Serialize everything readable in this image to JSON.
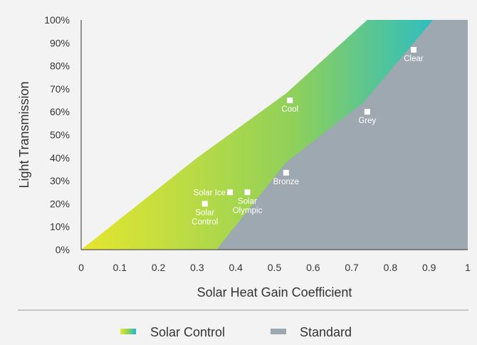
{
  "chart_data": {
    "type": "area",
    "xlabel": "Solar Heat Gain Coefficient",
    "ylabel": "Light Transmission",
    "xlim": [
      0,
      1
    ],
    "ylim": [
      0,
      100
    ],
    "x_ticks": [
      "0",
      "0.1",
      "0.2",
      "0.3",
      "0.4",
      "0.5",
      "0.6",
      "0.7",
      "0.8",
      "0.9",
      "1"
    ],
    "y_ticks": [
      "0%",
      "10%",
      "20%",
      "30%",
      "40%",
      "50%",
      "60%",
      "70%",
      "80%",
      "90%",
      "100%"
    ],
    "grid": false,
    "legend_position": "bottom-center",
    "series": [
      {
        "name": "Solar Control",
        "colors": {
          "start": "#e6e62e",
          "mid": "#8fd05a",
          "end": "#18b9d8"
        },
        "boundary_lower": [
          [
            0,
            0
          ],
          [
            1,
            0
          ]
        ],
        "boundary_upper": [
          [
            0,
            0
          ],
          [
            0.3,
            40
          ],
          [
            0.53,
            68
          ],
          [
            0.74,
            100
          ]
        ]
      },
      {
        "name": "Standard",
        "color": "#9ea8b0",
        "boundary_upper": [
          [
            0.35,
            0
          ],
          [
            0.53,
            38
          ],
          [
            0.73,
            64
          ],
          [
            0.91,
            100
          ]
        ]
      }
    ],
    "points": [
      {
        "label": "Clear",
        "x": 0.86,
        "y": 87,
        "label_pos": "below"
      },
      {
        "label": "Cool",
        "x": 0.54,
        "y": 65,
        "label_pos": "below"
      },
      {
        "label": "Grey",
        "x": 0.74,
        "y": 60,
        "label_pos": "below"
      },
      {
        "label": "Bronze",
        "x": 0.53,
        "y": 33.5,
        "label_pos": "below"
      },
      {
        "label": "Solar Ice",
        "x": 0.385,
        "y": 25,
        "label_pos": "left"
      },
      {
        "label": "Solar Olympic",
        "x": 0.43,
        "y": 25,
        "label_pos": "below"
      },
      {
        "label": "Solar Control",
        "x": 0.32,
        "y": 20,
        "label_pos": "below"
      }
    ]
  },
  "legend": {
    "items": [
      {
        "label": "Solar Control",
        "swatch": "gradient"
      },
      {
        "label": "Standard",
        "swatch": "#9ea8b0"
      }
    ]
  },
  "colors": {
    "background": "#f3f3f3",
    "divider": "#9a9a9a",
    "axis": "#333333"
  }
}
